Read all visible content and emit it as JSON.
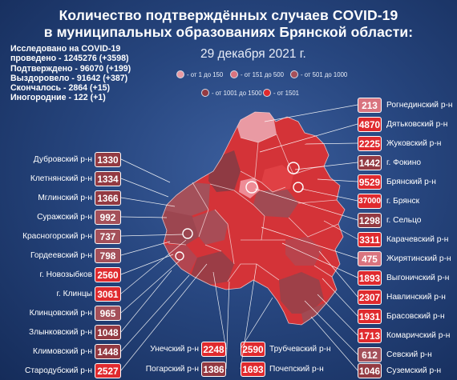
{
  "title_line1": "Количество подтверждённых случаев COVID-19",
  "title_line2": "в муниципальных образованиях Брянской области:",
  "date": "29 декабря 2021 г.",
  "stats": [
    "Исследовано на COVID-19",
    "проведено - 1245276 (+3598)",
    "Подтверждено - 96070 (+199)",
    "Выздоровело - 91642 (+387)",
    "Скончалось - 2864 (+15)",
    "Иногородние - 122 (+1)"
  ],
  "legend": [
    {
      "label": "- от 1 до 150",
      "color": "#e99aa3"
    },
    {
      "label": "- от 151 до 500",
      "color": "#d9747f"
    },
    {
      "label": "- от 501 до 1000",
      "color": "#a4505a"
    },
    {
      "label": "- от 1001 до 1500",
      "color": "#933a42"
    },
    {
      "label": "- от 1501",
      "color": "#e02a2e"
    }
  ],
  "districts_left": [
    {
      "name": "Дубровский р-н",
      "value": "1330",
      "color": "#933a42"
    },
    {
      "name": "Клетнянский р-н",
      "value": "1334",
      "color": "#933a42"
    },
    {
      "name": "Мглинский р-н",
      "value": "1366",
      "color": "#933a42"
    },
    {
      "name": "Суражский р-н",
      "value": "992",
      "color": "#a4505a"
    },
    {
      "name": "Красногорский р-н",
      "value": "737",
      "color": "#a4505a"
    },
    {
      "name": "Гордеевский р-н",
      "value": "798",
      "color": "#a4505a"
    },
    {
      "name": "г. Новозыбков",
      "value": "2560",
      "color": "#e02a2e"
    },
    {
      "name": "г. Клинцы",
      "value": "3061",
      "color": "#e02a2e"
    },
    {
      "name": "Клинцовский р-н",
      "value": "965",
      "color": "#a4505a"
    },
    {
      "name": "Злынковский р-н",
      "value": "1048",
      "color": "#933a42"
    },
    {
      "name": "Климовский р-н",
      "value": "1448",
      "color": "#933a42"
    },
    {
      "name": "Стародубский р-н",
      "value": "2527",
      "color": "#e02a2e"
    }
  ],
  "districts_right": [
    {
      "name": "Рогнединский р-н",
      "value": "213",
      "color": "#d9747f"
    },
    {
      "name": "Дятьковский р-н",
      "value": "4870",
      "color": "#e02a2e"
    },
    {
      "name": "Жуковский р-н",
      "value": "2225",
      "color": "#e02a2e"
    },
    {
      "name": "г. Фокино",
      "value": "1442",
      "color": "#933a42"
    },
    {
      "name": "Брянский р-н",
      "value": "9529",
      "color": "#e02a2e"
    },
    {
      "name": "г. Брянск",
      "value": "37000",
      "color": "#e02a2e"
    },
    {
      "name": "г. Сельцо",
      "value": "1298",
      "color": "#933a42"
    },
    {
      "name": "Карачевский р-н",
      "value": "3311",
      "color": "#e02a2e"
    },
    {
      "name": "Жирятинский р-н",
      "value": "475",
      "color": "#d9747f"
    },
    {
      "name": "Выгоничский р-н",
      "value": "1893",
      "color": "#e02a2e"
    },
    {
      "name": "Навлинский р-н",
      "value": "2307",
      "color": "#e02a2e"
    },
    {
      "name": "Брасовский р-н",
      "value": "1931",
      "color": "#e02a2e"
    },
    {
      "name": "Комаричский р-н",
      "value": "1713",
      "color": "#e02a2e"
    },
    {
      "name": "Севский р-н",
      "value": "612",
      "color": "#a4505a"
    },
    {
      "name": "Суземский р-н",
      "value": "1046",
      "color": "#933a42"
    }
  ],
  "districts_bottom": [
    {
      "name": "Унечский р-н",
      "value": "2248",
      "color": "#e02a2e"
    },
    {
      "name": "Погарский р-н",
      "value": "1386",
      "color": "#933a42"
    },
    {
      "name": "Трубчевский р-н",
      "value": "2590",
      "color": "#e02a2e"
    },
    {
      "name": "Почепский р-н",
      "value": "1693",
      "color": "#e02a2e"
    }
  ]
}
